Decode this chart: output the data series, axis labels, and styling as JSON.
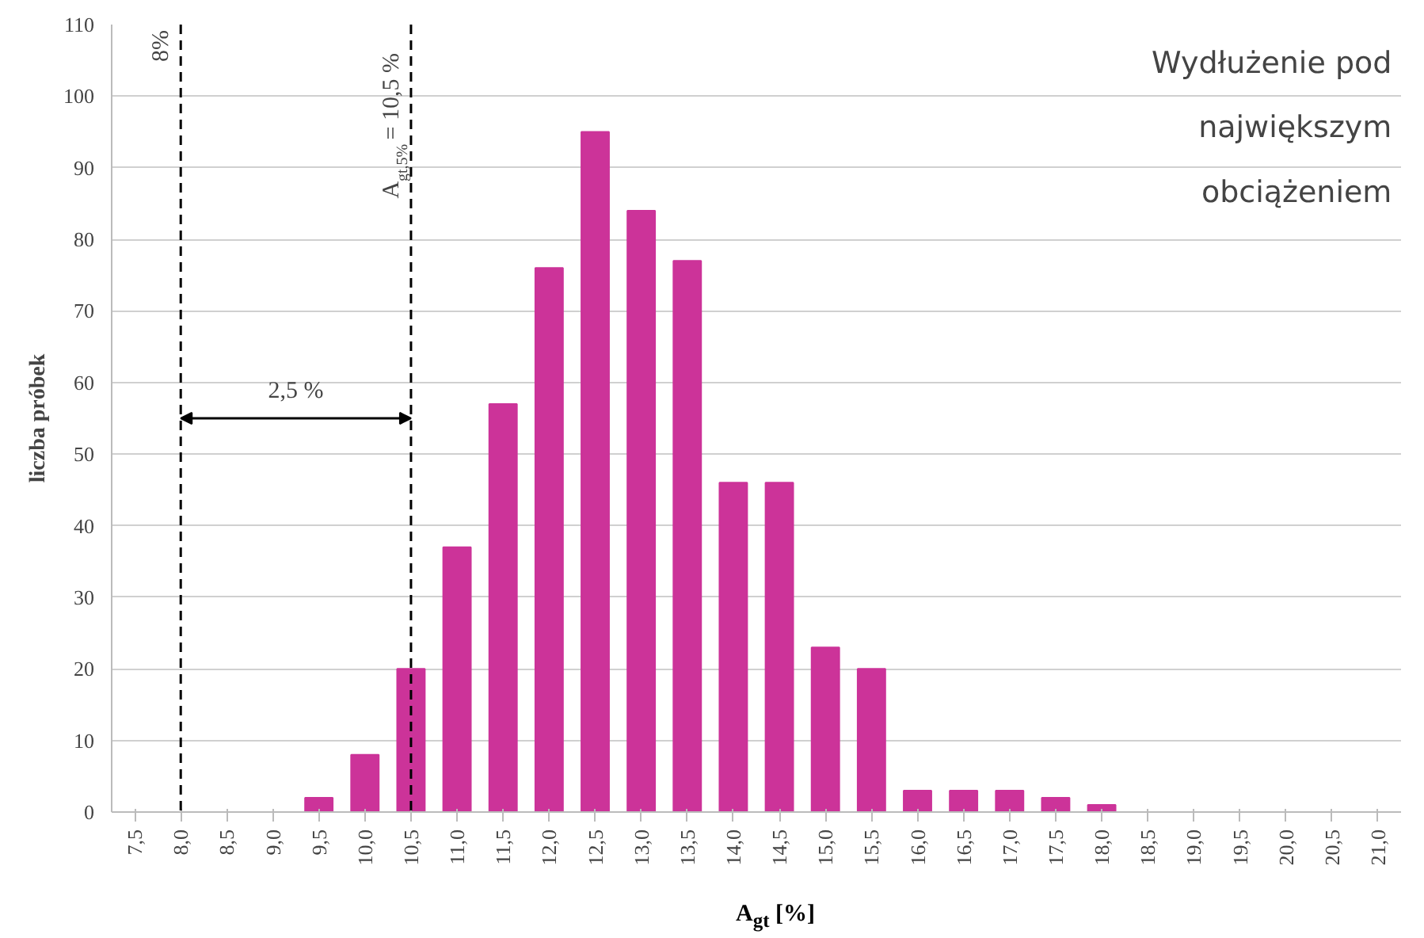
{
  "chart_data": {
    "type": "bar",
    "title": "Wydłużenie pod największym obciążeniem",
    "xlabel": "A$_{gt}$ [%]",
    "ylabel": "liczba próbek",
    "categories": [
      "7,5",
      "8,0",
      "8,5",
      "9,0",
      "9,5",
      "10,0",
      "10,5",
      "11,0",
      "11,5",
      "12,0",
      "12,5",
      "13,0",
      "13,5",
      "14,0",
      "14,5",
      "15,0",
      "15,5",
      "16,0",
      "16,5",
      "17,0",
      "17,5",
      "18,0",
      "18,5",
      "19,0",
      "19,5",
      "20,0",
      "20,5",
      "21,0"
    ],
    "values": [
      0,
      0,
      0,
      0,
      2,
      8,
      20,
      37,
      57,
      76,
      95,
      84,
      77,
      46,
      46,
      23,
      20,
      3,
      3,
      3,
      2,
      1,
      0,
      0,
      0,
      0,
      0,
      0
    ],
    "color": "#cc3399",
    "ylim": [
      0,
      110
    ],
    "yticks": [
      0,
      10,
      20,
      30,
      40,
      50,
      60,
      70,
      80,
      90,
      100,
      110
    ],
    "grid": "y",
    "ref_lines": [
      {
        "axis": "x",
        "value": "8,0",
        "label": "8%",
        "line_style": "dashed",
        "color": "#000000"
      },
      {
        "axis": "x",
        "value": "10,5",
        "label": "A$_{gt,5%}$ = 10,5 %",
        "line_style": "dashed",
        "color": "#000000"
      }
    ],
    "annotations": [
      "2,5 %"
    ]
  }
}
